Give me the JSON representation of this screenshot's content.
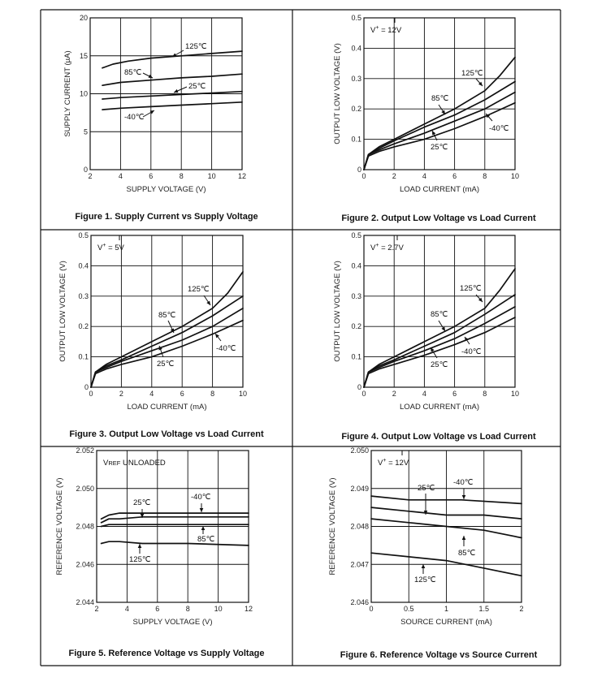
{
  "chart_data": [
    {
      "type": "line",
      "title": "Figure 1. Supply Current vs Supply Voltage",
      "xlabel": "SUPPLY VOLTAGE (V)",
      "ylabel": "SUPPLY CURRENT (µA)",
      "xlim": [
        2,
        12
      ],
      "ylim": [
        0,
        20
      ],
      "xticks": [
        2,
        4,
        6,
        8,
        10,
        12
      ],
      "yticks": [
        0,
        5,
        10,
        15,
        20
      ],
      "xtick_labels": [
        "2",
        "4",
        "6",
        "8",
        "10",
        "12"
      ],
      "ytick_labels": [
        "0",
        "5",
        "10",
        "15",
        "20"
      ],
      "grid": true,
      "annotations": [],
      "series": [
        {
          "name": "125℃",
          "x": [
            2.8,
            3.5,
            4.5,
            6,
            8,
            10,
            12
          ],
          "y": [
            13.4,
            13.9,
            14.3,
            14.7,
            15.0,
            15.3,
            15.6
          ]
        },
        {
          "name": "85℃",
          "x": [
            2.8,
            4,
            6,
            8,
            10,
            12
          ],
          "y": [
            11.1,
            11.5,
            11.8,
            12.1,
            12.3,
            12.6
          ]
        },
        {
          "name": "25℃",
          "x": [
            2.8,
            4,
            6,
            8,
            10,
            12
          ],
          "y": [
            9.3,
            9.5,
            9.7,
            9.9,
            10.1,
            10.3
          ]
        },
        {
          "name": "-40℃",
          "x": [
            2.8,
            4,
            6,
            8,
            10,
            12
          ],
          "y": [
            7.9,
            8.1,
            8.3,
            8.5,
            8.7,
            8.9
          ]
        }
      ]
    },
    {
      "type": "line",
      "title": "Figure 2. Output Low Voltage vs Load Current",
      "xlabel": "LOAD CURRENT (mA)",
      "ylabel": "OUTPUT LOW VOLTAGE (V)",
      "xlim": [
        0,
        10
      ],
      "ylim": [
        0,
        0.5
      ],
      "xticks": [
        0,
        2,
        4,
        6,
        8,
        10
      ],
      "yticks": [
        0,
        0.1,
        0.2,
        0.3,
        0.4,
        0.5
      ],
      "xtick_labels": [
        "0",
        "2",
        "4",
        "6",
        "8",
        "10"
      ],
      "ytick_labels": [
        "0",
        "0.1",
        "0.2",
        "0.3",
        "0.4",
        "0.5"
      ],
      "grid": true,
      "annotations": [
        "V+ = 12V"
      ],
      "series": [
        {
          "name": "125℃",
          "x": [
            0,
            0.3,
            1,
            2,
            4,
            6,
            8,
            9,
            10
          ],
          "y": [
            0,
            0.05,
            0.075,
            0.1,
            0.15,
            0.2,
            0.26,
            0.31,
            0.37
          ]
        },
        {
          "name": "85℃",
          "x": [
            0,
            0.3,
            1,
            2,
            4,
            6,
            8,
            10
          ],
          "y": [
            0,
            0.05,
            0.07,
            0.095,
            0.14,
            0.18,
            0.23,
            0.29
          ]
        },
        {
          "name": "25℃",
          "x": [
            0,
            0.3,
            1,
            2,
            4,
            6,
            8,
            10
          ],
          "y": [
            0,
            0.05,
            0.065,
            0.085,
            0.12,
            0.16,
            0.2,
            0.255
          ]
        },
        {
          "name": "-40℃",
          "x": [
            0,
            0.3,
            1,
            2,
            4,
            6,
            8,
            10
          ],
          "y": [
            0,
            0.045,
            0.06,
            0.075,
            0.1,
            0.135,
            0.175,
            0.22
          ]
        }
      ]
    },
    {
      "type": "line",
      "title": "Figure 3. Output Low Voltage vs Load Current",
      "xlabel": "LOAD CURRENT (mA)",
      "ylabel": "OUTPUT LOW VOLTAGE (V)",
      "xlim": [
        0,
        10
      ],
      "ylim": [
        0,
        0.5
      ],
      "xticks": [
        0,
        2,
        4,
        6,
        8,
        10
      ],
      "yticks": [
        0,
        0.1,
        0.2,
        0.3,
        0.4,
        0.5
      ],
      "xtick_labels": [
        "0",
        "2",
        "4",
        "6",
        "8",
        "10"
      ],
      "ytick_labels": [
        "0",
        "0.1",
        "0.2",
        "0.3",
        "0.4",
        "0.5"
      ],
      "grid": true,
      "annotations": [
        "V+ = 5V"
      ],
      "series": [
        {
          "name": "125℃",
          "x": [
            0,
            0.3,
            1,
            2,
            4,
            6,
            8,
            9,
            10
          ],
          "y": [
            0,
            0.05,
            0.075,
            0.1,
            0.15,
            0.2,
            0.26,
            0.31,
            0.38
          ]
        },
        {
          "name": "85℃",
          "x": [
            0,
            0.3,
            1,
            2,
            4,
            6,
            8,
            10
          ],
          "y": [
            0,
            0.05,
            0.07,
            0.09,
            0.135,
            0.18,
            0.235,
            0.3
          ]
        },
        {
          "name": "25℃",
          "x": [
            0,
            0.3,
            1,
            2,
            4,
            6,
            8,
            10
          ],
          "y": [
            0,
            0.05,
            0.065,
            0.085,
            0.12,
            0.155,
            0.2,
            0.26
          ]
        },
        {
          "name": "-40℃",
          "x": [
            0,
            0.3,
            1,
            2,
            4,
            6,
            8,
            10
          ],
          "y": [
            0,
            0.045,
            0.06,
            0.075,
            0.1,
            0.135,
            0.175,
            0.22
          ]
        }
      ]
    },
    {
      "type": "line",
      "title": "Figure 4. Output Low Voltage vs Load Current",
      "xlabel": "LOAD CURRENT (mA)",
      "ylabel": "OUTPUT LOW VOLTAGE (V)",
      "xlim": [
        0,
        10
      ],
      "ylim": [
        0,
        0.5
      ],
      "xticks": [
        0,
        2,
        4,
        6,
        8,
        10
      ],
      "yticks": [
        0,
        0.1,
        0.2,
        0.3,
        0.4,
        0.5
      ],
      "xtick_labels": [
        "0",
        "2",
        "4",
        "6",
        "8",
        "10"
      ],
      "ytick_labels": [
        "0",
        "0.1",
        "0.2",
        "0.3",
        "0.4",
        "0.5"
      ],
      "grid": true,
      "annotations": [
        "V+ = 2.7V"
      ],
      "series": [
        {
          "name": "125℃",
          "x": [
            0,
            0.3,
            1,
            2,
            4,
            6,
            8,
            9,
            10
          ],
          "y": [
            0,
            0.05,
            0.075,
            0.1,
            0.15,
            0.2,
            0.26,
            0.32,
            0.39
          ]
        },
        {
          "name": "85℃",
          "x": [
            0,
            0.3,
            1,
            2,
            4,
            6,
            8,
            10
          ],
          "y": [
            0,
            0.05,
            0.07,
            0.09,
            0.135,
            0.18,
            0.24,
            0.305
          ]
        },
        {
          "name": "25℃",
          "x": [
            0,
            0.3,
            1,
            2,
            4,
            6,
            8,
            10
          ],
          "y": [
            0,
            0.05,
            0.065,
            0.085,
            0.12,
            0.16,
            0.21,
            0.265
          ]
        },
        {
          "name": "-40℃",
          "x": [
            0,
            0.3,
            1,
            2,
            4,
            6,
            8,
            10
          ],
          "y": [
            0,
            0.045,
            0.06,
            0.075,
            0.105,
            0.14,
            0.18,
            0.23
          ]
        }
      ]
    },
    {
      "type": "line",
      "title": "Figure 5. Reference Voltage vs Supply Voltage",
      "xlabel": "SUPPLY VOLTAGE (V)",
      "ylabel": "REFERENCE VOLTAGE (V)",
      "xlim": [
        2,
        12
      ],
      "ylim": [
        2.044,
        2.052
      ],
      "xticks": [
        2,
        4,
        6,
        8,
        10,
        12
      ],
      "yticks": [
        2.044,
        2.046,
        2.048,
        2.05,
        2.052
      ],
      "xtick_labels": [
        "2",
        "4",
        "6",
        "8",
        "10",
        "12"
      ],
      "ytick_labels": [
        "2.044",
        "2.046",
        "2.048",
        "2.050",
        "2.052"
      ],
      "grid": true,
      "annotations": [
        "VREF UNLOADED"
      ],
      "series": [
        {
          "name": "25℃",
          "x": [
            2.3,
            2.8,
            3.5,
            5,
            8,
            12
          ],
          "y": [
            2.0484,
            2.0486,
            2.0487,
            2.0487,
            2.0487,
            2.0487
          ]
        },
        {
          "name": "-40℃",
          "x": [
            2.3,
            2.8,
            3.5,
            5,
            8,
            12
          ],
          "y": [
            2.0482,
            2.0484,
            2.0484,
            2.0485,
            2.0485,
            2.0485
          ]
        },
        {
          "name": "85℃",
          "x": [
            2.3,
            2.8,
            3.5,
            5,
            8,
            12
          ],
          "y": [
            2.048,
            2.0481,
            2.0481,
            2.0481,
            2.0481,
            2.0481
          ]
        },
        {
          "name": "125℃",
          "x": [
            2.3,
            2.8,
            3.5,
            5,
            8,
            12
          ],
          "y": [
            2.0471,
            2.0472,
            2.0472,
            2.0471,
            2.0471,
            2.047
          ]
        }
      ]
    },
    {
      "type": "line",
      "title": "Figure 6. Reference Voltage vs Source Current",
      "xlabel": "SOURCE CURRENT (mA)",
      "ylabel": "REFERENCE VOLTAGE (V)",
      "xlim": [
        0,
        2
      ],
      "ylim": [
        2.046,
        2.05
      ],
      "xticks": [
        0,
        0.5,
        1,
        1.5,
        2
      ],
      "yticks": [
        2.046,
        2.047,
        2.048,
        2.049,
        2.05
      ],
      "xtick_labels": [
        "0",
        "0.5",
        "1",
        "1.5",
        "2"
      ],
      "ytick_labels": [
        "2.046",
        "2.047",
        "2.048",
        "2.049",
        "2.050"
      ],
      "grid": true,
      "annotations": [
        "V+ = 12V"
      ],
      "series": [
        {
          "name": "-40℃",
          "x": [
            0,
            0.5,
            0.8,
            1.2,
            2
          ],
          "y": [
            2.0488,
            2.0487,
            2.0487,
            2.0487,
            2.0486
          ]
        },
        {
          "name": "25℃",
          "x": [
            0,
            0.5,
            1,
            1.5,
            2
          ],
          "y": [
            2.0485,
            2.0484,
            2.0483,
            2.0483,
            2.0482
          ]
        },
        {
          "name": "85℃",
          "x": [
            0,
            0.5,
            1,
            1.5,
            2
          ],
          "y": [
            2.0482,
            2.0481,
            2.048,
            2.0479,
            2.0477
          ]
        },
        {
          "name": "125℃",
          "x": [
            0,
            0.5,
            1,
            1.5,
            2
          ],
          "y": [
            2.0473,
            2.0472,
            2.0471,
            2.0469,
            2.0467
          ]
        }
      ]
    }
  ]
}
